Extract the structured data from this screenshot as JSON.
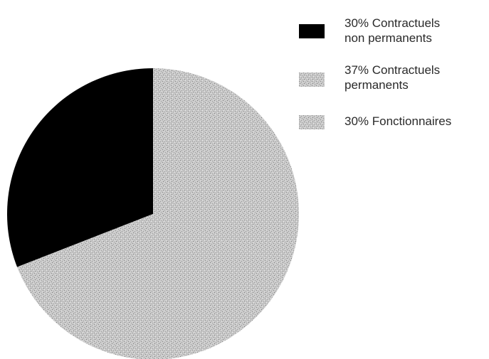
{
  "chart_data": {
    "type": "pie",
    "slices": [
      {
        "label": "30% Contractuels\nnon permanents",
        "value": 30,
        "color": "#000000",
        "pattern": "solid"
      },
      {
        "label": "37% Contractuels\npermanents",
        "value": 37,
        "color": "#bdbdbd",
        "pattern": "stipple"
      },
      {
        "label": "30% Fonctionnaires",
        "value": 30,
        "color": "#c2c2c2",
        "pattern": "stipple"
      }
    ],
    "legend_position": "top-right"
  }
}
